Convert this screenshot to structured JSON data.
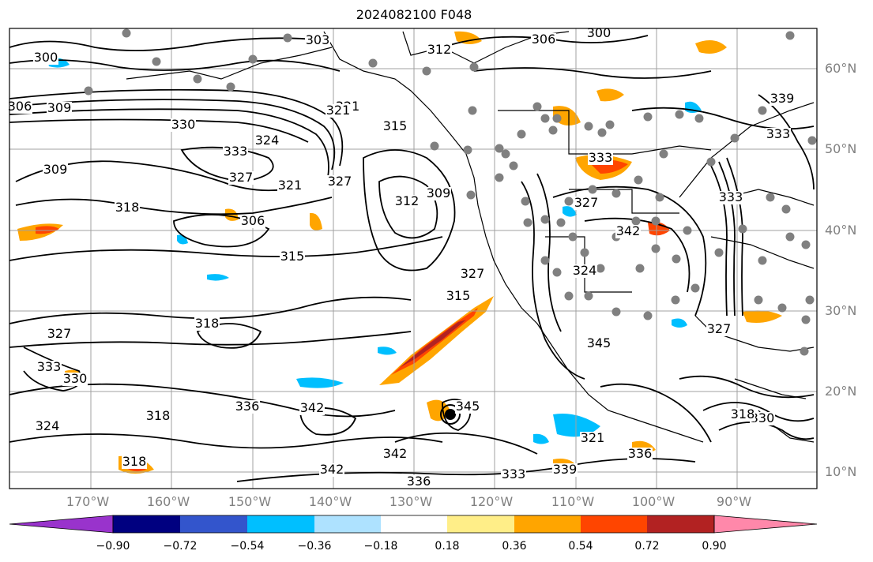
{
  "title": "2024082100 F048",
  "lon_labels": [
    "170°W",
    "160°W",
    "150°W",
    "140°W",
    "130°W",
    "120°W",
    "110°W",
    "100°W",
    "90°W"
  ],
  "lat_labels": [
    "60°N",
    "50°N",
    "40°N",
    "30°N",
    "20°N",
    "10°N"
  ],
  "colorbar": {
    "tick_labels": [
      "−0.90",
      "−0.72",
      "−0.54",
      "−0.36",
      "−0.18",
      "0.18",
      "0.36",
      "0.54",
      "0.72",
      "0.90"
    ],
    "colors": [
      "#9933cc",
      "#000080",
      "#3355cc",
      "#00bfff",
      "#aee2ff",
      "#ffffff",
      "#ffee88",
      "#ffa500",
      "#ff4500",
      "#b22222",
      "#ff88aa"
    ]
  },
  "contour_labels": [
    "300",
    "303",
    "306",
    "300",
    "309",
    "312",
    "306",
    "330",
    "324",
    "333",
    "327",
    "321",
    "315",
    "312",
    "309",
    "327",
    "321",
    "318",
    "315",
    "327",
    "309",
    "306",
    "324",
    "333",
    "327",
    "345",
    "342",
    "333",
    "318",
    "330",
    "327",
    "318",
    "336",
    "342",
    "333",
    "327",
    "324",
    "321",
    "339",
    "342",
    "333",
    "336",
    "342",
    "336",
    "339",
    "345",
    "333",
    "330",
    "318",
    "321",
    "315",
    "318"
  ],
  "legend_colors": {
    "land_outline": "#000000",
    "grid": "#a0a0a0",
    "station": "#808080"
  }
}
